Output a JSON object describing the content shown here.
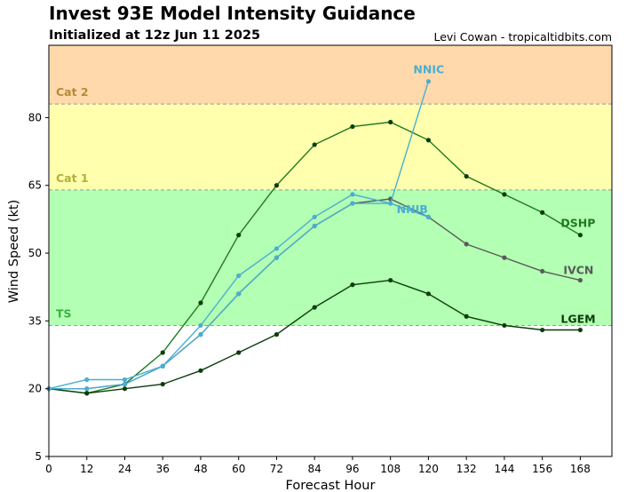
{
  "header": {
    "title": "Invest 93E Model Intensity Guidance",
    "subtitle": "Initialized at 12z Jun 11 2025",
    "credit": "Levi Cowan - tropicaltidbits.com"
  },
  "chart_data": {
    "type": "line",
    "xlabel": "Forecast Hour",
    "ylabel": "Wind Speed (kt)",
    "xlim": [
      0,
      178
    ],
    "ylim": [
      5,
      96
    ],
    "xticks": [
      0,
      12,
      24,
      36,
      48,
      60,
      72,
      84,
      96,
      108,
      120,
      132,
      144,
      156,
      168
    ],
    "yticks": [
      5,
      20,
      35,
      50,
      65,
      80
    ],
    "grid": false,
    "bands": [
      {
        "label": "TS",
        "from": 34,
        "to": 64,
        "color": "#b3ffb3",
        "label_color": "#3cb043"
      },
      {
        "label": "Cat 1",
        "from": 64,
        "to": 83,
        "color": "#ffffad",
        "label_color": "#b0b040"
      },
      {
        "label": "Cat 2",
        "from": 83,
        "to": 96,
        "color": "#ffd9ab",
        "label_color": "#b58a3c"
      }
    ],
    "series": [
      {
        "name": "DSHP",
        "color": "#1e7a1e",
        "label_color": "#1e7a1e",
        "marker": "#0b3d0b",
        "x": [
          0,
          12,
          24,
          36,
          48,
          60,
          72,
          84,
          96,
          108,
          120,
          132,
          144,
          156,
          168
        ],
        "y": [
          20,
          19,
          21,
          28,
          39,
          54,
          65,
          74,
          78,
          79,
          75,
          67,
          63,
          59,
          54
        ]
      },
      {
        "name": "IVCN",
        "color": "#5a5a5a",
        "label_color": "#5a5a5a",
        "marker": "#5a5a5a",
        "x": [
          0,
          12,
          24,
          36,
          48,
          60,
          72,
          84,
          96,
          108,
          120,
          132,
          144,
          156,
          168
        ],
        "y": [
          20,
          20,
          21,
          25,
          32,
          41,
          49,
          56,
          61,
          62,
          58,
          52,
          49,
          46,
          44
        ]
      },
      {
        "name": "LGEM",
        "color": "#0b3d0b",
        "label_color": "#0b3d0b",
        "marker": "#0b3d0b",
        "x": [
          0,
          12,
          24,
          36,
          48,
          60,
          72,
          84,
          96,
          108,
          120,
          132,
          144,
          156,
          168
        ],
        "y": [
          20,
          19,
          20,
          21,
          24,
          28,
          32,
          38,
          43,
          44,
          41,
          36,
          34,
          33,
          33
        ]
      },
      {
        "name": "NNIB",
        "color": "#4aaed0",
        "label_color": "#4aaed0",
        "marker": "#4aaed0",
        "x": [
          0,
          12,
          24,
          36,
          48,
          60,
          72,
          84,
          96,
          108,
          120
        ],
        "y": [
          20,
          20,
          21,
          25,
          32,
          41,
          49,
          56,
          61,
          61,
          58
        ]
      },
      {
        "name": "NNIC",
        "color": "#4aaed0",
        "label_color": "#4aaed0",
        "marker": "#4aaed0",
        "x": [
          0,
          12,
          24,
          36,
          48,
          60,
          72,
          84,
          96,
          108,
          120
        ],
        "y": [
          20,
          22,
          22,
          25,
          34,
          45,
          51,
          58,
          63,
          61,
          88
        ]
      }
    ]
  }
}
